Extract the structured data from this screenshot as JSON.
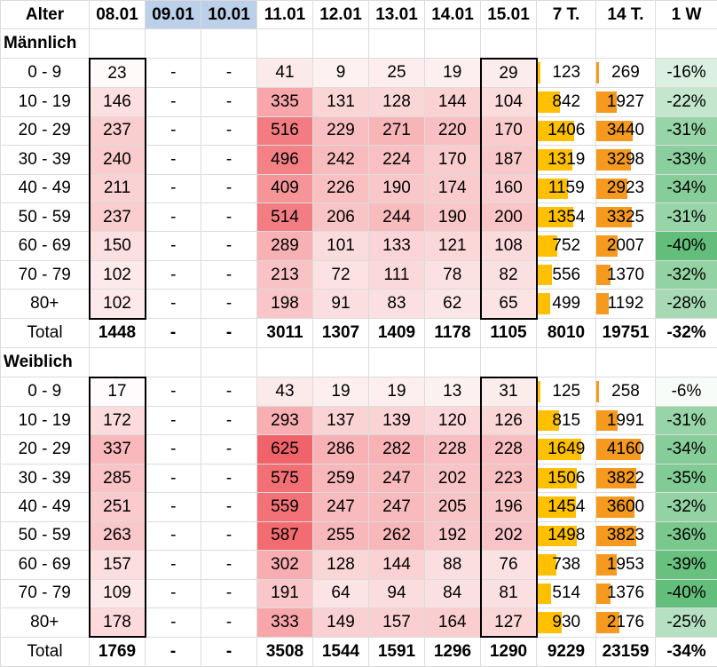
{
  "header": {
    "cells": [
      "Alter",
      "08.01",
      "09.01",
      "10.01",
      "11.01",
      "12.01",
      "13.01",
      "14.01",
      "15.01",
      "7 T.",
      "14 T.",
      "1 W"
    ],
    "weekend_color": "#bcd0ea"
  },
  "colors": {
    "heat_low": "#fdf3f3",
    "heat_high": "#f1636a",
    "bar_7t": "#ffc000",
    "bar_14t": "#f59a1e",
    "change_high": "#63be7b",
    "change_low": "#ffffff"
  },
  "sections": [
    {
      "title": "Männlich",
      "rows": [
        {
          "age": "0 - 9",
          "v": [
            "23",
            "-",
            "-",
            "41",
            "9",
            "25",
            "19",
            "29"
          ],
          "t7": 123,
          "t14": 269,
          "w": "-16%"
        },
        {
          "age": "10 - 19",
          "v": [
            "146",
            "-",
            "-",
            "335",
            "131",
            "128",
            "144",
            "104"
          ],
          "t7": 842,
          "t14": 1927,
          "w": "-22%"
        },
        {
          "age": "20 - 29",
          "v": [
            "237",
            "-",
            "-",
            "516",
            "229",
            "271",
            "220",
            "170"
          ],
          "t7": 1406,
          "t14": 3440,
          "w": "-31%"
        },
        {
          "age": "30 - 39",
          "v": [
            "240",
            "-",
            "-",
            "496",
            "242",
            "224",
            "170",
            "187"
          ],
          "t7": 1319,
          "t14": 3298,
          "w": "-33%"
        },
        {
          "age": "40 - 49",
          "v": [
            "211",
            "-",
            "-",
            "409",
            "226",
            "190",
            "174",
            "160"
          ],
          "t7": 1159,
          "t14": 2923,
          "w": "-34%"
        },
        {
          "age": "50 - 59",
          "v": [
            "237",
            "-",
            "-",
            "514",
            "206",
            "244",
            "190",
            "200"
          ],
          "t7": 1354,
          "t14": 3325,
          "w": "-31%"
        },
        {
          "age": "60 - 69",
          "v": [
            "150",
            "-",
            "-",
            "289",
            "101",
            "133",
            "121",
            "108"
          ],
          "t7": 752,
          "t14": 2007,
          "w": "-40%"
        },
        {
          "age": "70 - 79",
          "v": [
            "102",
            "-",
            "-",
            "213",
            "72",
            "111",
            "78",
            "82"
          ],
          "t7": 556,
          "t14": 1370,
          "w": "-32%"
        },
        {
          "age": "80+",
          "v": [
            "102",
            "-",
            "-",
            "198",
            "91",
            "83",
            "62",
            "65"
          ],
          "t7": 499,
          "t14": 1192,
          "w": "-28%"
        }
      ],
      "total": {
        "label": "Total",
        "v": [
          "1448",
          "-",
          "-",
          "3011",
          "1307",
          "1409",
          "1178",
          "1105"
        ],
        "t7": "8010",
        "t14": "19751",
        "w": "-32%"
      }
    },
    {
      "title": "Weiblich",
      "rows": [
        {
          "age": "0 - 9",
          "v": [
            "17",
            "-",
            "-",
            "43",
            "19",
            "19",
            "13",
            "31"
          ],
          "t7": 125,
          "t14": 258,
          "w": "-6%"
        },
        {
          "age": "10 - 19",
          "v": [
            "172",
            "-",
            "-",
            "293",
            "137",
            "139",
            "120",
            "126"
          ],
          "t7": 815,
          "t14": 1991,
          "w": "-31%"
        },
        {
          "age": "20 - 29",
          "v": [
            "337",
            "-",
            "-",
            "625",
            "286",
            "282",
            "228",
            "228"
          ],
          "t7": 1649,
          "t14": 4160,
          "w": "-34%"
        },
        {
          "age": "30 - 39",
          "v": [
            "285",
            "-",
            "-",
            "575",
            "259",
            "247",
            "202",
            "223"
          ],
          "t7": 1506,
          "t14": 3822,
          "w": "-35%"
        },
        {
          "age": "40 - 49",
          "v": [
            "251",
            "-",
            "-",
            "559",
            "247",
            "247",
            "205",
            "196"
          ],
          "t7": 1454,
          "t14": 3600,
          "w": "-32%"
        },
        {
          "age": "50 - 59",
          "v": [
            "263",
            "-",
            "-",
            "587",
            "255",
            "262",
            "192",
            "202"
          ],
          "t7": 1498,
          "t14": 3823,
          "w": "-36%"
        },
        {
          "age": "60 - 69",
          "v": [
            "157",
            "-",
            "-",
            "302",
            "128",
            "144",
            "88",
            "76"
          ],
          "t7": 738,
          "t14": 1953,
          "w": "-39%"
        },
        {
          "age": "70 - 79",
          "v": [
            "109",
            "-",
            "-",
            "191",
            "64",
            "94",
            "84",
            "81"
          ],
          "t7": 514,
          "t14": 1376,
          "w": "-40%"
        },
        {
          "age": "80+",
          "v": [
            "178",
            "-",
            "-",
            "333",
            "149",
            "157",
            "164",
            "127"
          ],
          "t7": 930,
          "t14": 2176,
          "w": "-25%"
        }
      ],
      "total": {
        "label": "Total",
        "v": [
          "1769",
          "-",
          "-",
          "3508",
          "1544",
          "1591",
          "1296",
          "1290"
        ],
        "t7": "9229",
        "t14": "23159",
        "w": "-34%"
      }
    }
  ]
}
